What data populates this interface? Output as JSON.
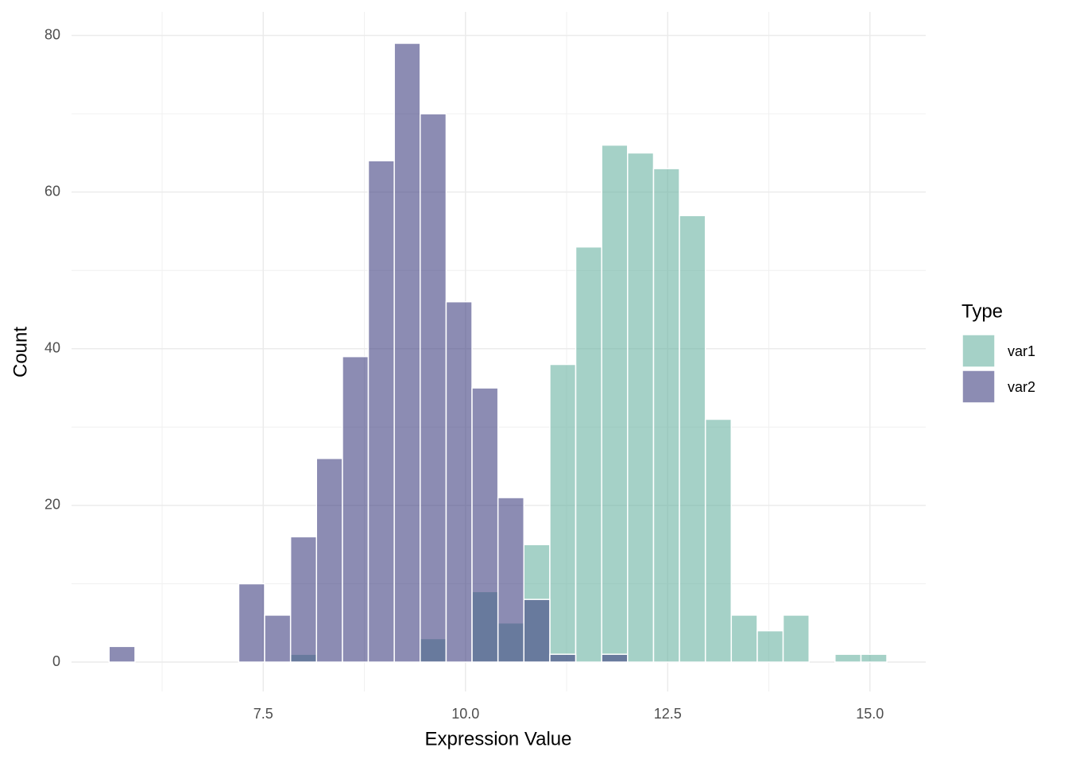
{
  "chart_data": {
    "type": "histogram",
    "x_label": "Expression Value",
    "y_label": "Count",
    "legend_title": "Type",
    "bins": [
      5.594,
      5.915,
      6.235,
      6.556,
      6.876,
      7.197,
      7.517,
      7.838,
      8.158,
      8.479,
      8.799,
      9.12,
      9.44,
      9.761,
      10.081,
      10.402,
      10.722,
      11.043,
      11.363,
      11.684,
      12.004,
      12.325,
      12.645,
      12.966,
      13.286,
      13.607,
      13.927,
      14.248,
      14.568,
      14.889,
      15.209
    ],
    "series": [
      {
        "name": "var1",
        "color": "#69b3a2",
        "values": [
          0,
          0,
          0,
          0,
          0,
          0,
          0,
          1,
          0,
          0,
          0,
          0,
          3,
          0,
          9,
          5,
          15,
          38,
          53,
          66,
          65,
          63,
          57,
          31,
          6,
          4,
          6,
          0,
          1,
          1
        ]
      },
      {
        "name": "var2",
        "color": "#404080",
        "values": [
          2,
          0,
          0,
          0,
          0,
          10,
          6,
          16,
          26,
          39,
          64,
          79,
          70,
          46,
          35,
          21,
          8,
          1,
          0,
          1,
          0,
          0,
          0,
          0,
          0,
          0,
          0,
          0,
          0,
          0
        ]
      }
    ],
    "xlim": [
      5.13,
      15.69
    ],
    "ylim": [
      -3.75,
      83
    ],
    "xticks": [
      {
        "value": 7.5,
        "label": "7.5"
      },
      {
        "value": 10,
        "label": "10.0"
      },
      {
        "value": 12.5,
        "label": "12.5"
      },
      {
        "value": 15,
        "label": "15.0"
      }
    ],
    "yticks": [
      0,
      20,
      40,
      60,
      80
    ],
    "opacity": 0.6,
    "grid": true
  }
}
